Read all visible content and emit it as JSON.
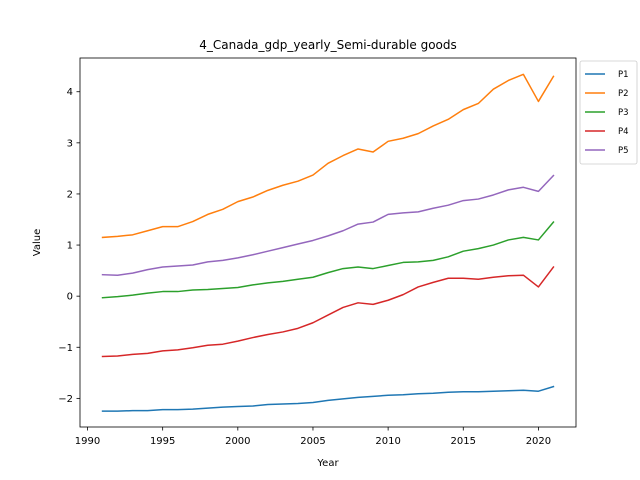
{
  "chart_data": {
    "type": "line",
    "title": "4_Canada_gdp_yearly_Semi-durable goods",
    "xlabel": "Year",
    "ylabel": "Value",
    "xlim": [
      1989.5,
      2022.5
    ],
    "ylim": [
      -2.56,
      4.66
    ],
    "xticks": [
      1990,
      1995,
      2000,
      2005,
      2010,
      2015,
      2020
    ],
    "yticks": [
      -2,
      -1,
      0,
      1,
      2,
      3,
      4
    ],
    "grid": false,
    "legend": "outside-top-right",
    "x": [
      1991,
      1992,
      1993,
      1994,
      1995,
      1996,
      1997,
      1998,
      1999,
      2000,
      2001,
      2002,
      2003,
      2004,
      2005,
      2006,
      2007,
      2008,
      2009,
      2010,
      2011,
      2012,
      2013,
      2014,
      2015,
      2016,
      2017,
      2018,
      2019,
      2020,
      2021
    ],
    "series": [
      {
        "name": "P1",
        "color": "#1f77b4",
        "values": [
          -2.25,
          -2.25,
          -2.24,
          -2.24,
          -2.22,
          -2.22,
          -2.21,
          -2.19,
          -2.17,
          -2.16,
          -2.15,
          -2.12,
          -2.11,
          -2.1,
          -2.08,
          -2.04,
          -2.01,
          -1.98,
          -1.96,
          -1.94,
          -1.93,
          -1.91,
          -1.9,
          -1.88,
          -1.87,
          -1.87,
          -1.86,
          -1.85,
          -1.84,
          -1.86,
          -1.77
        ]
      },
      {
        "name": "P2",
        "color": "#ff7f0e",
        "values": [
          1.15,
          1.17,
          1.2,
          1.28,
          1.36,
          1.36,
          1.46,
          1.6,
          1.7,
          1.85,
          1.94,
          2.07,
          2.17,
          2.25,
          2.37,
          2.6,
          2.75,
          2.88,
          2.82,
          3.03,
          3.09,
          3.18,
          3.33,
          3.46,
          3.65,
          3.77,
          4.05,
          4.22,
          4.34,
          3.81,
          4.3
        ]
      },
      {
        "name": "P3",
        "color": "#2ca02c",
        "values": [
          -0.03,
          -0.01,
          0.02,
          0.06,
          0.09,
          0.09,
          0.12,
          0.13,
          0.15,
          0.17,
          0.22,
          0.26,
          0.29,
          0.33,
          0.37,
          0.46,
          0.54,
          0.57,
          0.54,
          0.6,
          0.66,
          0.67,
          0.7,
          0.77,
          0.88,
          0.93,
          1.0,
          1.1,
          1.15,
          1.1,
          1.45
        ]
      },
      {
        "name": "P4",
        "color": "#d62728",
        "values": [
          -1.18,
          -1.17,
          -1.14,
          -1.12,
          -1.07,
          -1.05,
          -1.01,
          -0.96,
          -0.94,
          -0.88,
          -0.81,
          -0.75,
          -0.7,
          -0.63,
          -0.52,
          -0.37,
          -0.22,
          -0.13,
          -0.16,
          -0.08,
          0.03,
          0.18,
          0.27,
          0.35,
          0.35,
          0.33,
          0.37,
          0.4,
          0.41,
          0.18,
          0.57
        ]
      },
      {
        "name": "P5",
        "color": "#9467bd",
        "values": [
          0.42,
          0.41,
          0.45,
          0.52,
          0.57,
          0.59,
          0.61,
          0.67,
          0.7,
          0.75,
          0.81,
          0.88,
          0.95,
          1.02,
          1.09,
          1.18,
          1.28,
          1.41,
          1.45,
          1.6,
          1.63,
          1.65,
          1.72,
          1.78,
          1.87,
          1.9,
          1.98,
          2.08,
          2.13,
          2.05,
          2.36
        ]
      }
    ]
  }
}
